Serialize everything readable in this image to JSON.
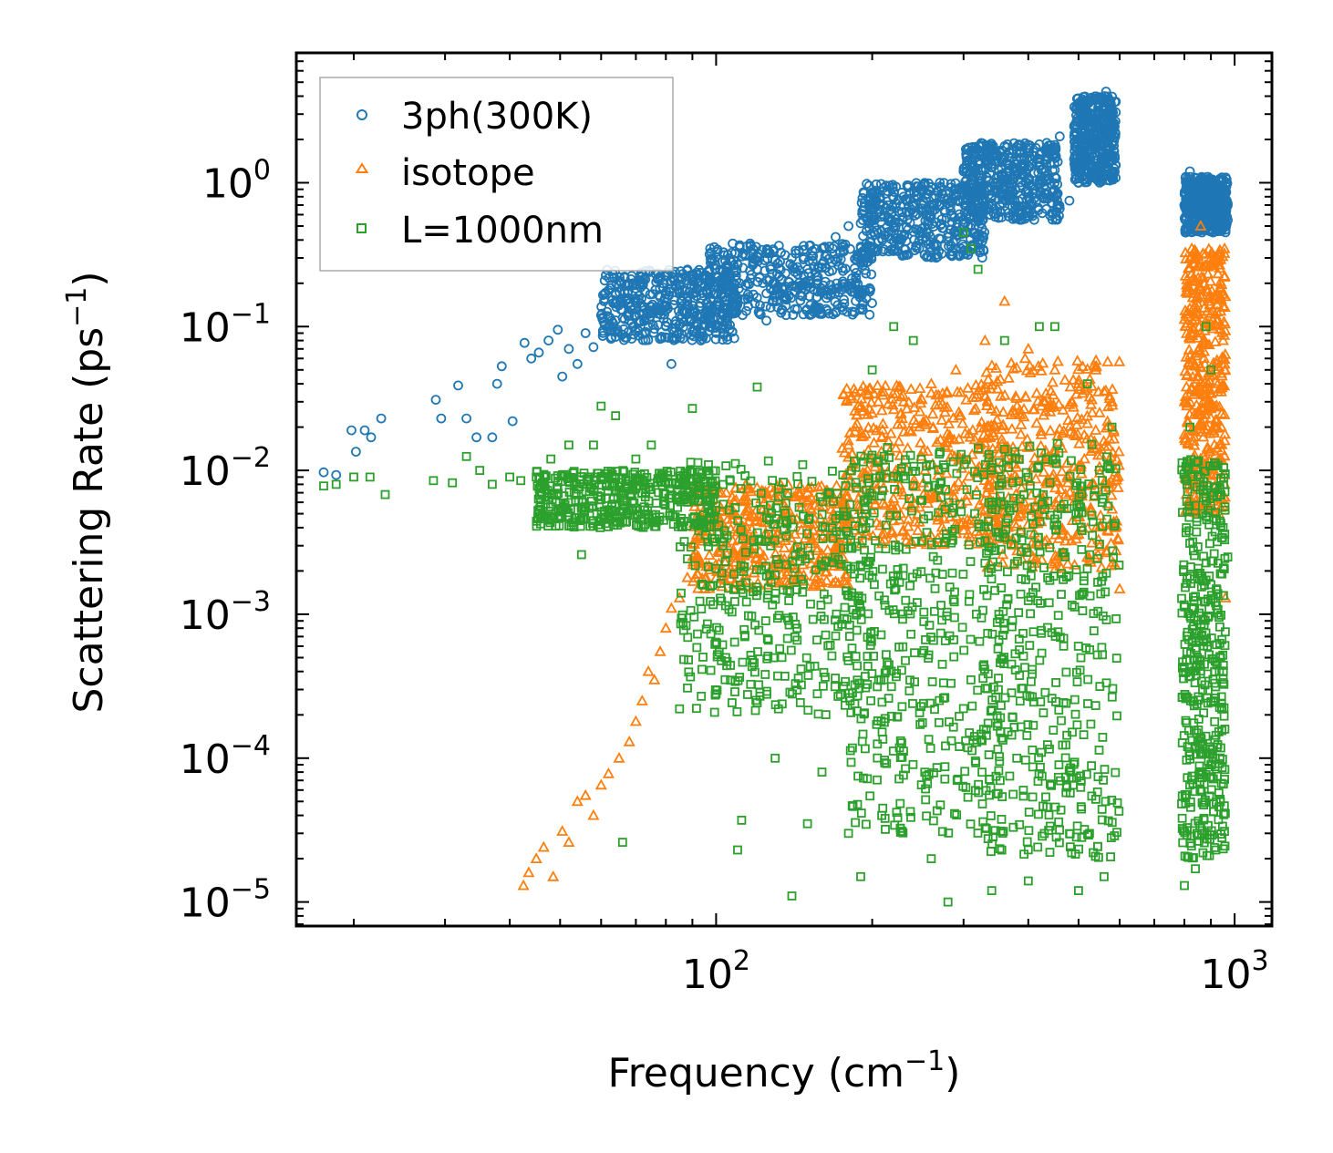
{
  "chart_data": {
    "type": "scatter",
    "title": "",
    "xlabel": "Frequency (cm",
    "xlabel_sup": "−1",
    "xlabel_tail": ")",
    "ylabel": "Scattering Rate (ps",
    "ylabel_sup": "−1",
    "ylabel_tail": ")",
    "xscale": "log",
    "yscale": "log",
    "xlim": [
      15.5,
      1180
    ],
    "ylim": [
      6.8e-06,
      8.0
    ],
    "x_ticks": [
      {
        "value": 100,
        "base": "10",
        "exp": "2"
      },
      {
        "value": 1000,
        "base": "10",
        "exp": "3"
      }
    ],
    "y_ticks": [
      {
        "value": 1e-05,
        "base": "10",
        "exp": "−5"
      },
      {
        "value": 0.0001,
        "base": "10",
        "exp": "−4"
      },
      {
        "value": 0.001,
        "base": "10",
        "exp": "−3"
      },
      {
        "value": 0.01,
        "base": "10",
        "exp": "−2"
      },
      {
        "value": 0.1,
        "base": "10",
        "exp": "−1"
      },
      {
        "value": 1,
        "base": "10",
        "exp": "0"
      }
    ],
    "legend_position": "upper-left",
    "series": [
      {
        "name": "3ph(300K)",
        "marker": "circle",
        "color": "#1f77b4",
        "points": [
          [
            17.5,
            0.0097
          ],
          [
            18.5,
            0.0093
          ],
          [
            19.8,
            0.019
          ],
          [
            20.2,
            0.0135
          ],
          [
            21.0,
            0.019
          ],
          [
            21.6,
            0.017
          ],
          [
            22.6,
            0.023
          ],
          [
            28.8,
            0.031
          ],
          [
            29.5,
            0.023
          ],
          [
            31.8,
            0.039
          ],
          [
            33.0,
            0.023
          ],
          [
            34.5,
            0.017
          ],
          [
            37.0,
            0.017
          ],
          [
            37.8,
            0.04
          ],
          [
            38.6,
            0.053
          ],
          [
            40.5,
            0.022
          ],
          [
            42.7,
            0.077
          ],
          [
            44.0,
            0.06
          ],
          [
            45.5,
            0.066
          ],
          [
            47.5,
            0.08
          ],
          [
            49.5,
            0.095
          ],
          [
            50.5,
            0.045
          ],
          [
            52.0,
            0.07
          ],
          [
            54.0,
            0.055
          ],
          [
            56.0,
            0.09
          ],
          [
            58.0,
            0.072
          ],
          [
            60.0,
            0.12
          ],
          [
            62.0,
            0.1
          ],
          [
            64.0,
            0.085
          ],
          [
            66.0,
            0.13
          ],
          [
            68.0,
            0.11
          ],
          [
            70.0,
            0.12
          ],
          [
            72.0,
            0.14
          ],
          [
            74.0,
            0.1
          ],
          [
            76.0,
            0.13
          ],
          [
            78.0,
            0.16
          ],
          [
            80.0,
            0.13
          ],
          [
            82.0,
            0.055
          ],
          [
            85.0,
            0.17
          ],
          [
            88.0,
            0.15
          ],
          [
            92.0,
            0.2
          ],
          [
            96.0,
            0.17
          ],
          [
            100.0,
            0.22
          ],
          [
            105.0,
            0.18
          ],
          [
            110.0,
            0.27
          ],
          [
            115.0,
            0.2
          ],
          [
            120.0,
            0.25
          ],
          [
            125.0,
            0.11
          ],
          [
            130.0,
            0.2
          ],
          [
            140.0,
            0.3
          ],
          [
            150.0,
            0.25
          ],
          [
            160.0,
            0.35
          ],
          [
            170.0,
            0.42
          ],
          [
            180.0,
            0.5
          ],
          [
            190.0,
            0.36
          ],
          [
            200.0,
            0.55
          ],
          [
            210.0,
            0.7
          ],
          [
            220.0,
            0.5
          ],
          [
            230.0,
            0.8
          ],
          [
            240.0,
            0.62
          ],
          [
            250.0,
            0.9
          ],
          [
            260.0,
            0.7
          ],
          [
            270.0,
            1.0
          ],
          [
            280.0,
            0.72
          ],
          [
            290.0,
            0.9
          ],
          [
            300.0,
            1.2
          ],
          [
            320.0,
            0.95
          ],
          [
            340.0,
            1.35
          ],
          [
            360.0,
            1.1
          ],
          [
            380.0,
            1.6
          ],
          [
            400.0,
            1.3
          ],
          [
            420.0,
            1.85
          ],
          [
            440.0,
            1.6
          ],
          [
            460.0,
            2.1
          ],
          [
            480.0,
            0.75
          ],
          [
            500.0,
            1.0
          ],
          [
            520.0,
            1.5
          ],
          [
            540.0,
            2.3
          ],
          [
            555.0,
            3.0
          ],
          [
            565.0,
            4.3
          ],
          [
            575.0,
            3.2
          ],
          [
            585.0,
            2.6
          ],
          [
            800.0,
            0.7
          ],
          [
            820.0,
            1.2
          ],
          [
            840.0,
            1.0
          ],
          [
            860.0,
            0.6
          ],
          [
            880.0,
            0.8
          ],
          [
            900.0,
            0.55
          ],
          [
            920.0,
            0.65
          ],
          [
            950.0,
            0.58
          ],
          [
            970.0,
            0.55
          ]
        ],
        "bands": [
          {
            "x0": 60,
            "x1": 110,
            "y0": 0.08,
            "y1": 0.25
          },
          {
            "x0": 95,
            "x1": 200,
            "y0": 0.12,
            "y1": 0.38
          },
          {
            "x0": 190,
            "x1": 330,
            "y0": 0.3,
            "y1": 1.0
          },
          {
            "x0": 300,
            "x1": 460,
            "y0": 0.55,
            "y1": 1.9
          },
          {
            "x0": 490,
            "x1": 590,
            "y0": 1.0,
            "y1": 4.0
          },
          {
            "x0": 800,
            "x1": 970,
            "y0": 0.45,
            "y1": 1.1
          }
        ]
      },
      {
        "name": "isotope",
        "marker": "triangle",
        "color": "#ff7f0e",
        "points": [
          [
            42.5,
            1.3e-05
          ],
          [
            43.5,
            1.6e-05
          ],
          [
            45.0,
            2e-05
          ],
          [
            46.5,
            2.4e-05
          ],
          [
            48.5,
            1.5e-05
          ],
          [
            50.5,
            3.1e-05
          ],
          [
            52.0,
            2.6e-05
          ],
          [
            54.0,
            5e-05
          ],
          [
            56.0,
            5.5e-05
          ],
          [
            58.0,
            4e-05
          ],
          [
            60.0,
            6.5e-05
          ],
          [
            62.0,
            7.8e-05
          ],
          [
            65.0,
            0.0001
          ],
          [
            68.0,
            0.00013
          ],
          [
            70.0,
            0.00018
          ],
          [
            72.0,
            0.00025
          ],
          [
            74.0,
            0.0004
          ],
          [
            76.0,
            0.00035
          ],
          [
            78.0,
            0.00055
          ],
          [
            80.0,
            0.0008
          ],
          [
            82.0,
            0.0011
          ],
          [
            85.0,
            0.0013
          ],
          [
            88.0,
            0.0018
          ],
          [
            92.0,
            0.0025
          ],
          [
            100.0,
            0.005
          ],
          [
            120.0,
            0.0045
          ],
          [
            150.0,
            0.007
          ],
          [
            180.0,
            0.015
          ],
          [
            200.0,
            0.025
          ],
          [
            230.0,
            0.03
          ],
          [
            260.0,
            0.04
          ],
          [
            290.0,
            0.05
          ],
          [
            330.0,
            0.08
          ],
          [
            360.0,
            0.15
          ],
          [
            400.0,
            0.07
          ],
          [
            450.0,
            0.05
          ],
          [
            500.0,
            0.04
          ],
          [
            540.0,
            0.05
          ],
          [
            580.0,
            0.03
          ],
          [
            600.0,
            0.0015
          ],
          [
            820.0,
            0.3
          ],
          [
            860.0,
            0.5
          ],
          [
            900.0,
            0.3
          ],
          [
            950.0,
            0.08
          ],
          [
            960.0,
            0.0013
          ]
        ],
        "bands": [
          {
            "x0": 90,
            "x1": 180,
            "y0": 0.0015,
            "y1": 0.008
          },
          {
            "x0": 175,
            "x1": 360,
            "y0": 0.003,
            "y1": 0.04
          },
          {
            "x0": 330,
            "x1": 600,
            "y0": 0.002,
            "y1": 0.06
          },
          {
            "x0": 800,
            "x1": 960,
            "y0": 0.005,
            "y1": 0.35
          }
        ]
      },
      {
        "name": "L=1000nm",
        "marker": "square",
        "color": "#2ca02c",
        "points": [
          [
            17.5,
            0.0078
          ],
          [
            18.5,
            0.008
          ],
          [
            20.0,
            0.009
          ],
          [
            21.5,
            0.009
          ],
          [
            23.0,
            0.0068
          ],
          [
            28.5,
            0.0085
          ],
          [
            31.0,
            0.0082
          ],
          [
            33.0,
            0.0125
          ],
          [
            35.0,
            0.01
          ],
          [
            37.0,
            0.008
          ],
          [
            40.0,
            0.009
          ],
          [
            42.0,
            0.0085
          ],
          [
            45.0,
            0.009
          ],
          [
            48.0,
            0.012
          ],
          [
            52.0,
            0.015
          ],
          [
            55.0,
            0.0026
          ],
          [
            58.0,
            0.015
          ],
          [
            60.0,
            0.028
          ],
          [
            64.0,
            0.024
          ],
          [
            66.0,
            2.6e-05
          ],
          [
            70.0,
            0.012
          ],
          [
            75.0,
            0.015
          ],
          [
            85.0,
            0.00022
          ],
          [
            90.0,
            0.027
          ],
          [
            100.0,
            0.00028
          ],
          [
            110.0,
            2.3e-05
          ],
          [
            112.0,
            3.7e-05
          ],
          [
            120.0,
            0.038
          ],
          [
            130.0,
            0.0001
          ],
          [
            140.0,
            1.1e-05
          ],
          [
            150.0,
            3.5e-05
          ],
          [
            160.0,
            8e-05
          ],
          [
            180.0,
            3e-05
          ],
          [
            190.0,
            1.5e-05
          ],
          [
            200.0,
            0.05
          ],
          [
            220.0,
            0.1
          ],
          [
            240.0,
            0.08
          ],
          [
            260.0,
            2e-05
          ],
          [
            280.0,
            1e-05
          ],
          [
            300.0,
            0.45
          ],
          [
            310.0,
            0.35
          ],
          [
            320.0,
            0.25
          ],
          [
            340.0,
            1.2e-05
          ],
          [
            360.0,
            0.08
          ],
          [
            380.0,
            0.0001
          ],
          [
            400.0,
            1.4e-05
          ],
          [
            420.0,
            0.1
          ],
          [
            450.0,
            0.1
          ],
          [
            500.0,
            1.2e-05
          ],
          [
            520.0,
            0.04
          ],
          [
            560.0,
            1.5e-05
          ],
          [
            580.0,
            0.02
          ],
          [
            800.0,
            1.3e-05
          ],
          [
            820.0,
            0.02
          ],
          [
            840.0,
            1.7e-05
          ],
          [
            880.0,
            0.1
          ],
          [
            900.0,
            0.05
          ],
          [
            920.0,
            2.3e-05
          ],
          [
            950.0,
            0.004
          ],
          [
            970.0,
            0.0025
          ]
        ],
        "bands": [
          {
            "x0": 45,
            "x1": 100,
            "y0": 0.004,
            "y1": 0.01
          },
          {
            "x0": 85,
            "x1": 200,
            "y0": 0.0002,
            "y1": 0.012
          },
          {
            "x0": 180,
            "x1": 360,
            "y0": 3e-05,
            "y1": 0.015
          },
          {
            "x0": 330,
            "x1": 600,
            "y0": 2e-05,
            "y1": 0.016
          },
          {
            "x0": 790,
            "x1": 960,
            "y0": 2e-05,
            "y1": 0.012
          }
        ]
      }
    ]
  }
}
